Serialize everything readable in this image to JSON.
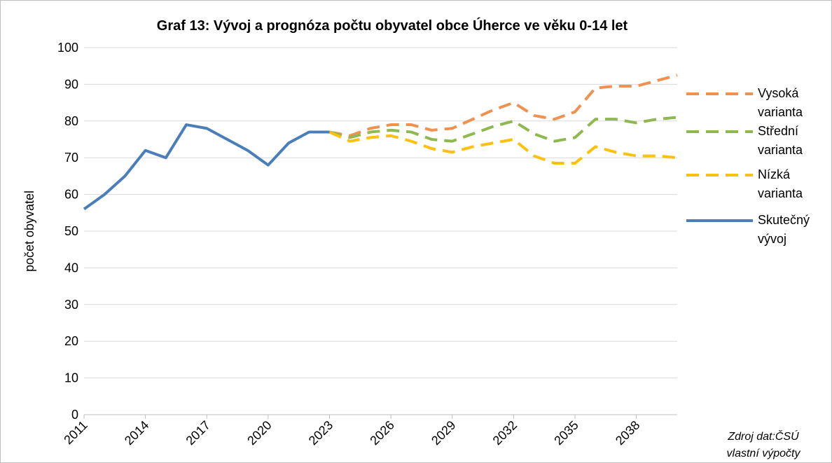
{
  "chart_data": {
    "type": "line",
    "title": "Graf 13: Vývoj a prognóza počtu obyvatel obce Úherce ve věku 0-14 let",
    "y_label": "počet obyvatel",
    "x": [
      2011,
      2012,
      2013,
      2014,
      2015,
      2016,
      2017,
      2018,
      2019,
      2020,
      2021,
      2022,
      2023,
      2024,
      2025,
      2026,
      2027,
      2028,
      2029,
      2030,
      2031,
      2032,
      2033,
      2034,
      2035,
      2036,
      2037,
      2038,
      2039,
      2040
    ],
    "xlim": [
      2011,
      2040
    ],
    "xticks": [
      2011,
      2014,
      2017,
      2020,
      2023,
      2026,
      2029,
      2032,
      2035,
      2038
    ],
    "ylim": [
      0,
      100
    ],
    "yticks": [
      0,
      10,
      20,
      30,
      40,
      50,
      60,
      70,
      80,
      90,
      100
    ],
    "grid": true,
    "legend": "right",
    "series": [
      {
        "name": "Vysoká varianta",
        "color": "#f0914f",
        "dashed": true,
        "values": [
          null,
          null,
          null,
          null,
          null,
          null,
          null,
          null,
          null,
          null,
          null,
          null,
          77,
          76,
          78,
          79,
          79,
          77.5,
          78,
          80.5,
          83,
          85,
          81.5,
          80.5,
          82.5,
          89,
          89.5,
          89.5,
          91,
          92.5
        ]
      },
      {
        "name": "Střední varianta",
        "color": "#8fb84e",
        "dashed": true,
        "values": [
          null,
          null,
          null,
          null,
          null,
          null,
          null,
          null,
          null,
          null,
          null,
          null,
          77,
          75.5,
          77,
          77.5,
          77,
          75,
          74.5,
          76.5,
          78.5,
          80,
          76.5,
          74.5,
          75.5,
          80.5,
          80.5,
          79.5,
          80.5,
          81
        ]
      },
      {
        "name": "Nízká varianta",
        "color": "#fcc10f",
        "dashed": true,
        "values": [
          null,
          null,
          null,
          null,
          null,
          null,
          null,
          null,
          null,
          null,
          null,
          null,
          77,
          74.5,
          75.5,
          76,
          74.5,
          72.5,
          71.5,
          73,
          74,
          75,
          70.5,
          68.5,
          68.5,
          73,
          71.5,
          70.5,
          70.5,
          70
        ]
      },
      {
        "name": "Skutečný vývoj",
        "color": "#4a7ebb",
        "dashed": false,
        "values": [
          56,
          60,
          65,
          72,
          70,
          79,
          78,
          75,
          72,
          68,
          74,
          77,
          77,
          null,
          null,
          null,
          null,
          null,
          null,
          null,
          null,
          null,
          null,
          null,
          null,
          null,
          null,
          null,
          null,
          null
        ]
      }
    ],
    "source": [
      "Zdroj dat:ČSÚ",
      "vlastní výpočty"
    ]
  }
}
